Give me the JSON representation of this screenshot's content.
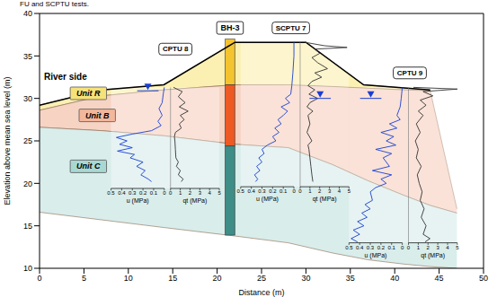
{
  "caption": "FU and SCPTU tests.",
  "chart_data": {
    "type": "cross_section",
    "x_label": "Distance (m)",
    "y_label": "Elevation above mean sea level (m)",
    "xlim": [
      0,
      50
    ],
    "xticks": [
      0,
      5,
      10,
      15,
      20,
      25,
      30,
      35,
      40,
      45,
      50
    ],
    "ylim": [
      10,
      40
    ],
    "yticks": [
      10,
      15,
      20,
      25,
      30,
      35,
      40
    ],
    "annotations": [
      {
        "text": "River side",
        "x": 0.5,
        "y": 32.6
      }
    ],
    "ground_surface": {
      "color": "#000000",
      "x": [
        0,
        7,
        14,
        22,
        30,
        36.5,
        44
      ],
      "y": [
        29.2,
        31.0,
        31.6,
        36.6,
        36.6,
        31.6,
        31.0
      ]
    },
    "units": [
      {
        "name": "Unit R",
        "color": "#fbf0b2",
        "label_color": "#f6e27a",
        "label_x": 5.5,
        "label_y": 30.6,
        "x": [
          0,
          7,
          14,
          22,
          30,
          36.5,
          44
        ],
        "top": [
          29.2,
          31.0,
          31.6,
          36.6,
          36.6,
          31.6,
          31.0
        ],
        "bottom": [
          28.6,
          30.3,
          31.0,
          31.6,
          31.5,
          31.2,
          30.9
        ]
      },
      {
        "name": "Unit B",
        "color": "#f7d3c3",
        "label_color": "#f3b79c",
        "label_x": 6.5,
        "label_y": 28.0,
        "x": [
          0,
          7,
          14,
          22,
          28,
          33,
          37,
          41,
          44,
          47
        ],
        "top": [
          28.6,
          30.3,
          31.0,
          31.6,
          31.6,
          31.4,
          31.2,
          31.0,
          30.9,
          17.0
        ],
        "bottom": [
          26.6,
          26.2,
          25.6,
          24.6,
          24.2,
          22.2,
          20.3,
          18.6,
          17.4,
          16.5
        ]
      },
      {
        "name": "Unit C",
        "color": "#d9edeb",
        "label_x": 5.5,
        "label_y": 22.0,
        "label_color": "#a9d8d3",
        "x": [
          0,
          7,
          14,
          22,
          28,
          33,
          37,
          41,
          44,
          47
        ],
        "top": [
          26.6,
          26.2,
          25.6,
          24.6,
          24.2,
          22.2,
          20.3,
          18.6,
          17.4,
          16.5
        ],
        "bottom": [
          16.6,
          15.7,
          14.8,
          13.8,
          13.0,
          11.8,
          11.0,
          10.5,
          10.2,
          10.0
        ]
      }
    ],
    "water_table": {
      "color": "#1a3fd1",
      "x": [
        12.2,
        31.6,
        37.3
      ],
      "y": [
        30.9,
        30.0,
        30.0
      ]
    },
    "boreholes": [
      {
        "name": "BH-3",
        "x": 21.45,
        "label_y": 38.3,
        "layers": [
          {
            "top": 37.0,
            "bottom": 31.6,
            "color": "#f4c430"
          },
          {
            "top": 31.6,
            "bottom": 24.4,
            "color": "#ee5a24"
          },
          {
            "top": 24.4,
            "bottom": 13.9,
            "color": "#3e8e87"
          }
        ]
      }
    ],
    "u_label": "u (MPa)",
    "qt_label": "qt (MPa)",
    "u_ticks": [
      0.5,
      0.4,
      0.3,
      0.2,
      0.1,
      0
    ],
    "qt_ticks": [
      0,
      1,
      2,
      3,
      4,
      5
    ],
    "u_color": "#1a3fd1",
    "qt_color": "#333333",
    "cptu": [
      {
        "name": "CPTU 8",
        "x": 14.4,
        "label_x": 15.3,
        "label_y": 35.8,
        "axis_y": 19.4,
        "elevation_u": [
          31.3,
          30.5,
          29.5,
          28.8,
          28.0,
          27.3,
          26.8,
          26.2,
          25.8,
          25.4,
          25.0,
          24.6,
          24.2,
          23.8,
          23.4,
          23.0,
          22.5,
          22.0,
          21.5,
          21.0,
          20.5,
          20.2
        ],
        "u": [
          0,
          0.01,
          0.02,
          0.05,
          0.02,
          0.06,
          0.03,
          0.12,
          0.3,
          0.45,
          0.35,
          0.42,
          0.3,
          0.44,
          0.28,
          0.32,
          0.2,
          0.26,
          0.18,
          0.22,
          0.15,
          0.12
        ],
        "elevation_qt": [
          31.3,
          30.8,
          30.2,
          29.5,
          29.0,
          28.5,
          28.0,
          27.5,
          27.0,
          26.5,
          26.0,
          25.5,
          25.0,
          24.0,
          23.0,
          22.5,
          22.0,
          21.5,
          21.0,
          20.5,
          20.2
        ],
        "qt": [
          0.3,
          1.2,
          0.8,
          1.5,
          0.9,
          1.8,
          1.0,
          1.4,
          0.9,
          1.1,
          0.5,
          0.4,
          0.45,
          0.5,
          0.55,
          0.8,
          0.6,
          1.0,
          0.8,
          1.3,
          1.1
        ]
      },
      {
        "name": "SCPTU 7",
        "x": 29.0,
        "label_x": 28.3,
        "label_y": 38.3,
        "axis_y": 19.6,
        "elevation_u": [
          36.6,
          35.0,
          33.0,
          31.5,
          30.5,
          30.0,
          29.5,
          29.0,
          28.5,
          28.0,
          27.5,
          27.0,
          26.5,
          26.0,
          25.5,
          25.0,
          24.5,
          24.0,
          23.5,
          23.0,
          22.5,
          22.0,
          21.5,
          21.0,
          20.5,
          20.2
        ],
        "u": [
          0,
          0,
          0.01,
          0.02,
          0.03,
          0.08,
          0.04,
          0.12,
          0.06,
          0.1,
          0.15,
          0.12,
          0.18,
          0.14,
          0.2,
          0.17,
          0.25,
          0.3,
          0.28,
          0.33,
          0.3,
          0.35,
          0.32,
          0.37,
          0.34,
          0.36
        ],
        "elevation_qt": [
          36.6,
          36.2,
          36.0,
          35.8,
          35.3,
          34.8,
          34.2,
          33.5,
          33.0,
          32.5,
          32.0,
          31.5,
          31.0,
          30.5,
          30.0,
          29.5,
          29.0,
          28.5,
          28.0,
          27.0,
          26.0,
          25.0,
          24.5,
          24.0,
          23.0,
          22.0,
          21.0,
          20.2
        ],
        "qt": [
          0.5,
          2.5,
          4.8,
          1.5,
          2.0,
          1.2,
          1.8,
          2.8,
          1.5,
          2.2,
          1.2,
          0.8,
          1.5,
          0.9,
          1.8,
          1.0,
          0.7,
          1.3,
          0.8,
          1.0,
          0.7,
          1.2,
          0.8,
          0.9,
          1.0,
          1.1,
          1.2,
          1.3
        ]
      },
      {
        "name": "CPTU 9",
        "x": 41.2,
        "label_x": 41.7,
        "label_y": 33.0,
        "axis_y": 13.0,
        "elevation_u": [
          31.3,
          30.0,
          29.0,
          28.0,
          27.5,
          27.0,
          26.5,
          26.0,
          25.5,
          25.0,
          24.5,
          24.0,
          23.5,
          23.0,
          22.0,
          21.5,
          21.0,
          20.5,
          20.0,
          19.5,
          19.0,
          18.0,
          17.5,
          17.0,
          16.5,
          16.0,
          15.5,
          15.0,
          14.5,
          14.0,
          13.5,
          13.1
        ],
        "u": [
          0,
          0.01,
          0.02,
          0.05,
          0.02,
          0.12,
          0.05,
          0.2,
          0.08,
          0.15,
          0.06,
          0.25,
          0.1,
          0.18,
          0.12,
          0.28,
          0.1,
          0.2,
          0.15,
          0.25,
          0.3,
          0.28,
          0.35,
          0.3,
          0.38,
          0.33,
          0.42,
          0.36,
          0.46,
          0.4,
          0.48,
          0.42
        ],
        "elevation_qt": [
          31.3,
          31.1,
          30.8,
          30.3,
          29.8,
          29.2,
          28.5,
          28.0,
          27.0,
          26.0,
          25.0,
          24.0,
          23.0,
          22.0,
          21.0,
          20.0,
          19.0,
          18.0,
          17.0,
          16.0,
          15.0,
          14.0,
          13.5,
          13.1
        ],
        "qt": [
          0.5,
          5,
          1.5,
          2.5,
          1.2,
          1.8,
          1.0,
          1.5,
          0.8,
          1.2,
          0.7,
          1.0,
          0.8,
          1.3,
          0.9,
          1.1,
          1.4,
          1.2,
          1.6,
          1.3,
          1.8,
          1.5,
          2.2,
          1.7
        ]
      }
    ]
  }
}
